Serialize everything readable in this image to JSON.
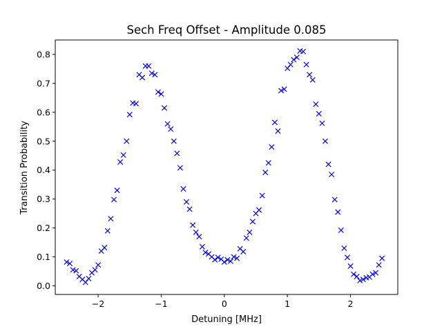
{
  "chart_data": {
    "type": "scatter",
    "title": "Sech Freq Offset - Amplitude 0.085",
    "xlabel": "Detuning [MHz]",
    "ylabel": "Transition Probability",
    "xlim": [
      -2.68,
      2.75
    ],
    "ylim": [
      -0.03,
      0.85
    ],
    "xticks": [
      -2,
      -1,
      0,
      1,
      2
    ],
    "xtick_labels": [
      "−2",
      "−1",
      "0",
      "1",
      "2"
    ],
    "yticks": [
      0.0,
      0.1,
      0.2,
      0.3,
      0.4,
      0.5,
      0.6,
      0.7,
      0.8
    ],
    "ytick_labels": [
      "0.0",
      "0.1",
      "0.2",
      "0.3",
      "0.4",
      "0.5",
      "0.6",
      "0.7",
      "0.8"
    ],
    "grid": false,
    "marker": "x",
    "color": "#0000ff",
    "series": [
      {
        "x": [
          -2.5,
          -2.45,
          -2.4,
          -2.35,
          -2.3,
          -2.25,
          -2.2,
          -2.15,
          -2.1,
          -2.05,
          -2.0,
          -1.95,
          -1.9,
          -1.85,
          -1.8,
          -1.75,
          -1.7,
          -1.65,
          -1.6,
          -1.55,
          -1.5,
          -1.45,
          -1.4,
          -1.35,
          -1.3,
          -1.25,
          -1.2,
          -1.15,
          -1.1,
          -1.05,
          -1.0,
          -0.95,
          -0.9,
          -0.85,
          -0.8,
          -0.75,
          -0.7,
          -0.65,
          -0.6,
          -0.55,
          -0.5,
          -0.45,
          -0.4,
          -0.35,
          -0.3,
          -0.25,
          -0.2,
          -0.15,
          -0.1,
          -0.05,
          0.0,
          0.05,
          0.1,
          0.15,
          0.2,
          0.25,
          0.3,
          0.35,
          0.4,
          0.45,
          0.5,
          0.55,
          0.6,
          0.65,
          0.7,
          0.75,
          0.8,
          0.85,
          0.9,
          0.95,
          1.0,
          1.05,
          1.1,
          1.15,
          1.2,
          1.25,
          1.3,
          1.35,
          1.4,
          1.45,
          1.5,
          1.55,
          1.6,
          1.65,
          1.7,
          1.75,
          1.8,
          1.85,
          1.9,
          1.95,
          2.0,
          2.05,
          2.1,
          2.15,
          2.2,
          2.25,
          2.3,
          2.35,
          2.4,
          2.45,
          2.5
        ],
        "y": [
          0.082,
          0.077,
          0.055,
          0.052,
          0.032,
          0.022,
          0.012,
          0.025,
          0.045,
          0.055,
          0.072,
          0.12,
          0.132,
          0.19,
          0.232,
          0.298,
          0.33,
          0.428,
          0.452,
          0.5,
          0.592,
          0.632,
          0.63,
          0.73,
          0.72,
          0.76,
          0.76,
          0.735,
          0.73,
          0.67,
          0.663,
          0.615,
          0.56,
          0.542,
          0.5,
          0.458,
          0.408,
          0.335,
          0.29,
          0.265,
          0.21,
          0.185,
          0.17,
          0.135,
          0.115,
          0.11,
          0.1,
          0.09,
          0.098,
          0.092,
          0.082,
          0.09,
          0.085,
          0.1,
          0.095,
          0.128,
          0.118,
          0.165,
          0.185,
          0.222,
          0.25,
          0.262,
          0.312,
          0.392,
          0.425,
          0.48,
          0.565,
          0.535,
          0.675,
          0.68,
          0.752,
          0.765,
          0.782,
          0.79,
          0.812,
          0.81,
          0.765,
          0.73,
          0.712,
          0.628,
          0.595,
          0.562,
          0.5,
          0.42,
          0.385,
          0.298,
          0.255,
          0.192,
          0.13,
          0.098,
          0.068,
          0.04,
          0.032,
          0.018,
          0.022,
          0.028,
          0.03,
          0.04,
          0.045,
          0.072,
          0.095
        ]
      }
    ]
  }
}
